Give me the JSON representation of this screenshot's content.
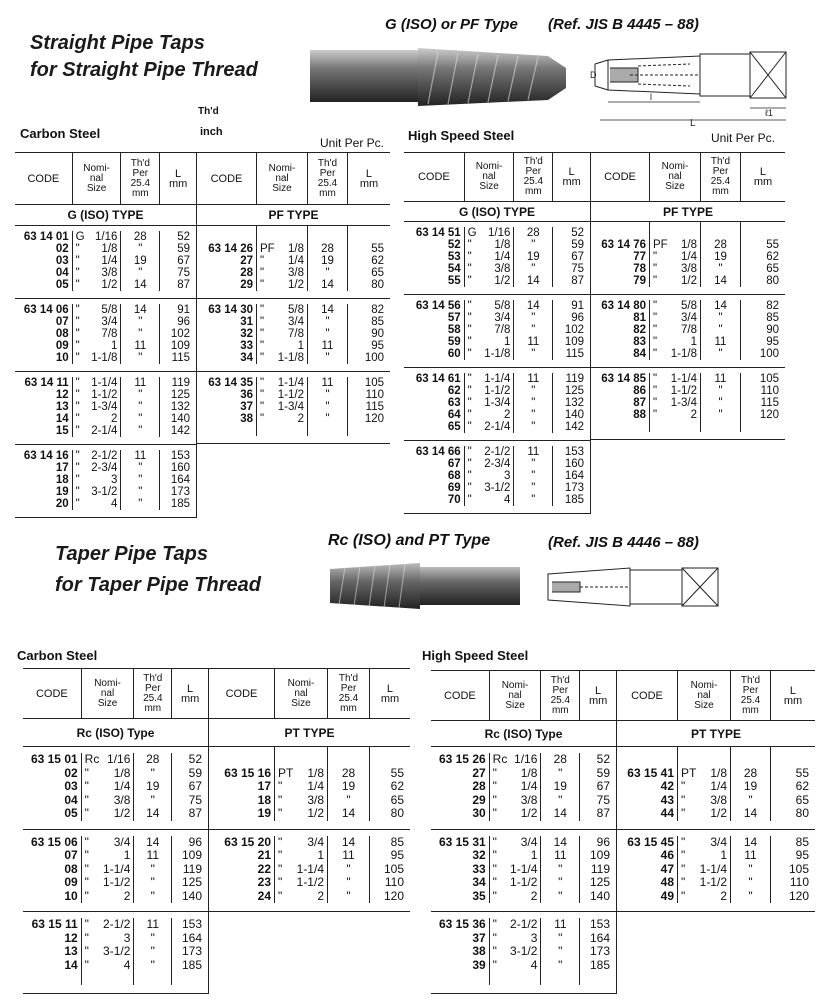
{
  "section1": {
    "title_line1": "Straight Pipe Taps",
    "title_line2": "for Straight Pipe Thread",
    "type_label": "G (ISO) or PF Type",
    "ref": "(Ref. JIS B 4445 – 88)",
    "thd_note": "Th'd",
    "inch_note": "inch"
  },
  "section2": {
    "title_line1": "Taper Pipe Taps",
    "title_line2": "for Taper Pipe Thread",
    "type_label": "Rc (ISO) and PT Type",
    "ref": "(Ref. JIS B 4446 – 88)"
  },
  "header": {
    "code": "CODE",
    "size": "Nomi-\nnal\nSize",
    "thd": "Th'd\nPer\n25.4\nmm",
    "l": "L\nmm"
  },
  "tables": [
    {
      "material": "Carbon Steel",
      "unit": "Unit Per Pc.",
      "left_type": "G (ISO) TYPE",
      "right_type": "PF TYPE",
      "left_groups": [
        [
          [
            "63 14 01",
            "G",
            "1/16",
            "28",
            "52"
          ],
          [
            "02",
            "\"",
            "1/8",
            "\"",
            "59"
          ],
          [
            "03",
            "\"",
            "1/4",
            "19",
            "67"
          ],
          [
            "04",
            "\"",
            "3/8",
            "\"",
            "75"
          ],
          [
            "05",
            "\"",
            "1/2",
            "14",
            "87"
          ]
        ],
        [
          [
            "63 14 06",
            "\"",
            "5/8",
            "14",
            "91"
          ],
          [
            "07",
            "\"",
            "3/4",
            "\"",
            "96"
          ],
          [
            "08",
            "\"",
            "7/8",
            "\"",
            "102"
          ],
          [
            "09",
            "\"",
            "1",
            "11",
            "109"
          ],
          [
            "10",
            "\"",
            "1-1/8",
            "\"",
            "115"
          ]
        ],
        [
          [
            "63 14 11",
            "\"",
            "1-1/4",
            "11",
            "119"
          ],
          [
            "12",
            "\"",
            "1-1/2",
            "\"",
            "125"
          ],
          [
            "13",
            "\"",
            "1-3/4",
            "\"",
            "132"
          ],
          [
            "14",
            "\"",
            "2",
            "\"",
            "140"
          ],
          [
            "15",
            "\"",
            "2-1/4",
            "\"",
            "142"
          ]
        ],
        [
          [
            "63 14 16",
            "\"",
            "2-1/2",
            "11",
            "153"
          ],
          [
            "17",
            "\"",
            "2-3/4",
            "\"",
            "160"
          ],
          [
            "18",
            "\"",
            "3",
            "\"",
            "164"
          ],
          [
            "19",
            "\"",
            "3-1/2",
            "\"",
            "173"
          ],
          [
            "20",
            "\"",
            "4",
            "\"",
            "185"
          ]
        ]
      ],
      "right_groups": [
        [
          [
            "63 14 26",
            "PF",
            "1/8",
            "28",
            "55"
          ],
          [
            "27",
            "\"",
            "1/4",
            "19",
            "62"
          ],
          [
            "28",
            "\"",
            "3/8",
            "\"",
            "65"
          ],
          [
            "29",
            "\"",
            "1/2",
            "14",
            "80"
          ]
        ],
        [
          [
            "63 14 30",
            "\"",
            "5/8",
            "14",
            "82"
          ],
          [
            "31",
            "\"",
            "3/4",
            "\"",
            "85"
          ],
          [
            "32",
            "\"",
            "7/8",
            "\"",
            "90"
          ],
          [
            "33",
            "\"",
            "1",
            "11",
            "95"
          ],
          [
            "34",
            "\"",
            "1-1/8",
            "\"",
            "100"
          ]
        ],
        [
          [
            "63 14 35",
            "\"",
            "1-1/4",
            "11",
            "105"
          ],
          [
            "36",
            "\"",
            "1-1/2",
            "\"",
            "110"
          ],
          [
            "37",
            "\"",
            "1-3/4",
            "\"",
            "115"
          ],
          [
            "38",
            "\"",
            "2",
            "\"",
            "120"
          ]
        ]
      ]
    },
    {
      "material": "High Speed Steel",
      "unit": "Unit Per Pc.",
      "left_type": "G (ISO) TYPE",
      "right_type": "PF TYPE",
      "left_groups": [
        [
          [
            "63 14 51",
            "G",
            "1/16",
            "28",
            "52"
          ],
          [
            "52",
            "\"",
            "1/8",
            "\"",
            "59"
          ],
          [
            "53",
            "\"",
            "1/4",
            "19",
            "67"
          ],
          [
            "54",
            "\"",
            "3/8",
            "\"",
            "75"
          ],
          [
            "55",
            "\"",
            "1/2",
            "14",
            "87"
          ]
        ],
        [
          [
            "63 14 56",
            "\"",
            "5/8",
            "14",
            "91"
          ],
          [
            "57",
            "\"",
            "3/4",
            "\"",
            "96"
          ],
          [
            "58",
            "\"",
            "7/8",
            "\"",
            "102"
          ],
          [
            "59",
            "\"",
            "1",
            "11",
            "109"
          ],
          [
            "60",
            "\"",
            "1-1/8",
            "\"",
            "115"
          ]
        ],
        [
          [
            "63 14 61",
            "\"",
            "1-1/4",
            "11",
            "119"
          ],
          [
            "62",
            "\"",
            "1-1/2",
            "\"",
            "125"
          ],
          [
            "63",
            "\"",
            "1-3/4",
            "\"",
            "132"
          ],
          [
            "64",
            "\"",
            "2",
            "\"",
            "140"
          ],
          [
            "65",
            "\"",
            "2-1/4",
            "\"",
            "142"
          ]
        ],
        [
          [
            "63 14 66",
            "\"",
            "2-1/2",
            "11",
            "153"
          ],
          [
            "67",
            "\"",
            "2-3/4",
            "\"",
            "160"
          ],
          [
            "68",
            "\"",
            "3",
            "\"",
            "164"
          ],
          [
            "69",
            "\"",
            "3-1/2",
            "\"",
            "173"
          ],
          [
            "70",
            "\"",
            "4",
            "\"",
            "185"
          ]
        ]
      ],
      "right_groups": [
        [
          [
            "63 14 76",
            "PF",
            "1/8",
            "28",
            "55"
          ],
          [
            "77",
            "\"",
            "1/4",
            "19",
            "62"
          ],
          [
            "78",
            "\"",
            "3/8",
            "\"",
            "65"
          ],
          [
            "79",
            "\"",
            "1/2",
            "14",
            "80"
          ]
        ],
        [
          [
            "63 14 80",
            "\"",
            "5/8",
            "14",
            "82"
          ],
          [
            "81",
            "\"",
            "3/4",
            "\"",
            "85"
          ],
          [
            "82",
            "\"",
            "7/8",
            "\"",
            "90"
          ],
          [
            "83",
            "\"",
            "1",
            "11",
            "95"
          ],
          [
            "84",
            "\"",
            "1-1/8",
            "\"",
            "100"
          ]
        ],
        [
          [
            "63 14 85",
            "\"",
            "1-1/4",
            "11",
            "105"
          ],
          [
            "86",
            "\"",
            "1-1/2",
            "\"",
            "110"
          ],
          [
            "87",
            "\"",
            "1-3/4",
            "\"",
            "115"
          ],
          [
            "88",
            "\"",
            "2",
            "\"",
            "120"
          ]
        ]
      ]
    },
    {
      "material": "Carbon Steel",
      "left_type": "Rc (ISO) Type",
      "right_type": "PT TYPE",
      "left_groups": [
        [
          [
            "63 15 01",
            "Rc",
            "1/16",
            "28",
            "52"
          ],
          [
            "02",
            "\"",
            "1/8",
            "\"",
            "59"
          ],
          [
            "03",
            "\"",
            "1/4",
            "19",
            "67"
          ],
          [
            "04",
            "\"",
            "3/8",
            "\"",
            "75"
          ],
          [
            "05",
            "\"",
            "1/2",
            "14",
            "87"
          ]
        ],
        [
          [
            "63 15 06",
            "\"",
            "3/4",
            "14",
            "96"
          ],
          [
            "07",
            "\"",
            "1",
            "11",
            "109"
          ],
          [
            "08",
            "\"",
            "1-1/4",
            "\"",
            "119"
          ],
          [
            "09",
            "\"",
            "1-1/2",
            "\"",
            "125"
          ],
          [
            "10",
            "\"",
            "2",
            "\"",
            "140"
          ]
        ],
        [
          [
            "63 15 11",
            "\"",
            "2-1/2",
            "11",
            "153"
          ],
          [
            "12",
            "\"",
            "3",
            "\"",
            "164"
          ],
          [
            "13",
            "\"",
            "3-1/2",
            "\"",
            "173"
          ],
          [
            "14",
            "\"",
            "4",
            "\"",
            "185"
          ]
        ]
      ],
      "right_groups": [
        [
          [
            "63 15 16",
            "PT",
            "1/8",
            "28",
            "55"
          ],
          [
            "17",
            "\"",
            "1/4",
            "19",
            "62"
          ],
          [
            "18",
            "\"",
            "3/8",
            "\"",
            "65"
          ],
          [
            "19",
            "\"",
            "1/2",
            "14",
            "80"
          ]
        ],
        [
          [
            "63 15 20",
            "\"",
            "3/4",
            "14",
            "85"
          ],
          [
            "21",
            "\"",
            "1",
            "11",
            "95"
          ],
          [
            "22",
            "\"",
            "1-1/4",
            "\"",
            "105"
          ],
          [
            "23",
            "\"",
            "1-1/2",
            "\"",
            "110"
          ],
          [
            "24",
            "\"",
            "2",
            "\"",
            "120"
          ]
        ]
      ]
    },
    {
      "material": "High Speed Steel",
      "left_type": "Rc (ISO) Type",
      "right_type": "PT TYPE",
      "left_groups": [
        [
          [
            "63 15 26",
            "Rc",
            "1/16",
            "28",
            "52"
          ],
          [
            "27",
            "\"",
            "1/8",
            "\"",
            "59"
          ],
          [
            "28",
            "\"",
            "1/4",
            "19",
            "67"
          ],
          [
            "29",
            "\"",
            "3/8",
            "\"",
            "75"
          ],
          [
            "30",
            "\"",
            "1/2",
            "14",
            "87"
          ]
        ],
        [
          [
            "63 15 31",
            "\"",
            "3/4",
            "14",
            "96"
          ],
          [
            "32",
            "\"",
            "1",
            "11",
            "109"
          ],
          [
            "33",
            "\"",
            "1-1/4",
            "\"",
            "119"
          ],
          [
            "34",
            "\"",
            "1-1/2",
            "\"",
            "125"
          ],
          [
            "35",
            "\"",
            "2",
            "\"",
            "140"
          ]
        ],
        [
          [
            "63 15 36",
            "\"",
            "2-1/2",
            "11",
            "153"
          ],
          [
            "37",
            "\"",
            "3",
            "\"",
            "164"
          ],
          [
            "38",
            "\"",
            "3-1/2",
            "\"",
            "173"
          ],
          [
            "39",
            "\"",
            "4",
            "\"",
            "185"
          ]
        ]
      ],
      "right_groups": [
        [
          [
            "63 15 41",
            "PT",
            "1/8",
            "28",
            "55"
          ],
          [
            "42",
            "\"",
            "1/4",
            "19",
            "62"
          ],
          [
            "43",
            "\"",
            "3/8",
            "\"",
            "65"
          ],
          [
            "44",
            "\"",
            "1/2",
            "14",
            "80"
          ]
        ],
        [
          [
            "63 15 45",
            "\"",
            "3/4",
            "14",
            "85"
          ],
          [
            "46",
            "\"",
            "1",
            "11",
            "95"
          ],
          [
            "47",
            "\"",
            "1-1/4",
            "\"",
            "105"
          ],
          [
            "48",
            "\"",
            "1-1/2",
            "\"",
            "110"
          ],
          [
            "49",
            "\"",
            "2",
            "\"",
            "120"
          ]
        ]
      ]
    }
  ]
}
